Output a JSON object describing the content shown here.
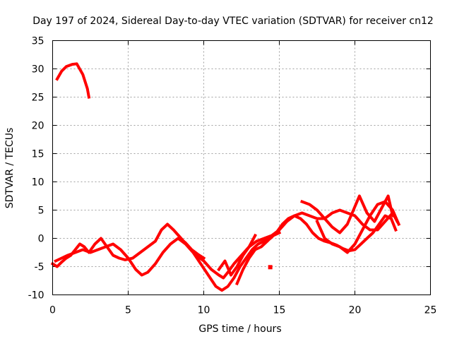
{
  "chart_data": {
    "type": "scatter",
    "title": "Day 197 of 2024, Sidereal Day-to-day VTEC variation (SDTVAR) for receiver cn12",
    "xlabel": "GPS time / hours",
    "ylabel": "SDTVAR / TECUs",
    "xlim": [
      0,
      25
    ],
    "ylim": [
      -10,
      35
    ],
    "x_ticks": [
      0,
      5,
      10,
      15,
      20,
      25
    ],
    "y_ticks": [
      -10,
      -5,
      0,
      5,
      10,
      15,
      20,
      25,
      30,
      35
    ],
    "grid": true,
    "color": "#ff0000",
    "series": [
      {
        "name": "arc-1",
        "x": [
          0.3,
          0.6,
          0.9,
          1.3,
          1.6,
          2.0,
          2.3,
          2.4
        ],
        "y": [
          28.2,
          29.6,
          30.4,
          30.8,
          30.9,
          29.0,
          26.5,
          25.0
        ]
      },
      {
        "name": "arc-2",
        "x": [
          0.0,
          0.3,
          0.6,
          0.9,
          1.2,
          1.5,
          1.8,
          2.1,
          2.4,
          2.8,
          3.2,
          3.6,
          4.0,
          4.4,
          4.8,
          5.3,
          5.8,
          6.3,
          6.8,
          7.2,
          7.6,
          8.0,
          8.5,
          9.0,
          9.5,
          10.0,
          10.5,
          11.0,
          11.3,
          11.6,
          12.0,
          12.5,
          13.0,
          13.5,
          14.0,
          14.5,
          15.0,
          15.5,
          16.0,
          16.5,
          17.0,
          17.5,
          18.0,
          18.5,
          19.0,
          19.5,
          20.0,
          20.5,
          21.0,
          21.5,
          22.0,
          22.5,
          22.8
        ],
        "y": [
          -4.5,
          -5.0,
          -4.2,
          -3.5,
          -3.0,
          -2.0,
          -1.0,
          -1.5,
          -2.5,
          -1.0,
          0.0,
          -1.5,
          -3.0,
          -3.5,
          -3.8,
          -3.5,
          -2.5,
          -1.5,
          -0.5,
          1.5,
          2.5,
          1.5,
          0.0,
          -1.5,
          -3.0,
          -4.0,
          -5.5,
          -6.5,
          -7.0,
          -6.0,
          -4.5,
          -3.0,
          -1.5,
          -0.5,
          0.0,
          0.5,
          1.5,
          3.0,
          4.0,
          4.5,
          4.0,
          3.5,
          3.5,
          4.5,
          5.0,
          4.5,
          4.0,
          2.5,
          1.5,
          1.5,
          3.0,
          4.5,
          3.0
        ]
      },
      {
        "name": "arc-3",
        "x": [
          0.2,
          0.6,
          1.0,
          1.5,
          2.0,
          2.5,
          3.0,
          3.5,
          4.0,
          4.5,
          5.0,
          5.5,
          5.9,
          6.3,
          6.8,
          7.3,
          7.8,
          8.3,
          8.8,
          9.3,
          9.8,
          10.3,
          10.8,
          11.2,
          11.6,
          12.0,
          12.4,
          12.8,
          13.2,
          13.6,
          14.0,
          14.4,
          14.8,
          15.2,
          15.6,
          16.0,
          16.4,
          16.8,
          17.2,
          17.6,
          18.0,
          18.4,
          18.8,
          19.2,
          19.6,
          20.0,
          20.4,
          20.8,
          21.2,
          21.6,
          22.0,
          22.4,
          22.7
        ],
        "y": [
          -4.0,
          -3.5,
          -3.0,
          -2.5,
          -2.0,
          -2.5,
          -2.0,
          -1.5,
          -1.0,
          -2.0,
          -3.5,
          -5.5,
          -6.5,
          -6.0,
          -4.5,
          -2.5,
          -1.0,
          0.0,
          -1.0,
          -2.5,
          -4.5,
          -6.5,
          -8.5,
          -9.2,
          -8.5,
          -7.0,
          -5.0,
          -3.5,
          -2.0,
          -1.0,
          -0.5,
          0.0,
          1.0,
          2.5,
          3.5,
          4.0,
          3.5,
          2.5,
          1.0,
          0.0,
          -0.5,
          -0.8,
          -1.2,
          -1.8,
          -2.2,
          -2.0,
          -1.0,
          0.0,
          1.0,
          2.5,
          4.0,
          3.5,
          1.5
        ]
      },
      {
        "name": "arc-4",
        "x": [
          16.5,
          17.0,
          17.5,
          18.0,
          18.5,
          19.0,
          19.5,
          19.9,
          20.3,
          20.8,
          21.3,
          21.8,
          22.2,
          22.5
        ],
        "y": [
          6.5,
          6.0,
          5.0,
          3.5,
          2.0,
          1.0,
          2.5,
          5.0,
          7.5,
          4.5,
          3.0,
          5.5,
          7.5,
          4.0
        ]
      },
      {
        "name": "arc-5",
        "x": [
          17.5,
          18.0,
          18.5,
          19.0,
          19.5,
          20.0,
          20.5,
          21.0,
          21.5,
          22.0,
          22.5,
          22.9
        ],
        "y": [
          3.0,
          0.0,
          -1.0,
          -1.5,
          -2.5,
          -1.0,
          1.5,
          4.0,
          6.0,
          6.5,
          5.0,
          2.5
        ]
      },
      {
        "name": "arc-6",
        "x": [
          12.2,
          12.6,
          13.0,
          13.4,
          13.8,
          14.2,
          14.6,
          15.0
        ],
        "y": [
          -8.0,
          -5.5,
          -3.5,
          -2.0,
          -1.5,
          -0.5,
          0.5,
          1.0
        ]
      },
      {
        "name": "arc-7",
        "x": [
          11.0,
          11.4,
          11.8,
          12.2,
          12.6,
          13.0,
          13.4
        ],
        "y": [
          -5.5,
          -4.0,
          -6.5,
          -5.0,
          -3.0,
          -1.5,
          0.5
        ]
      },
      {
        "name": "arc-8",
        "x": [
          8.4,
          8.8,
          9.2,
          9.6,
          10.0
        ],
        "y": [
          0.0,
          -0.8,
          -2.0,
          -2.8,
          -3.5
        ]
      }
    ],
    "points": [
      {
        "x": 14.4,
        "y": -5.1
      }
    ]
  }
}
